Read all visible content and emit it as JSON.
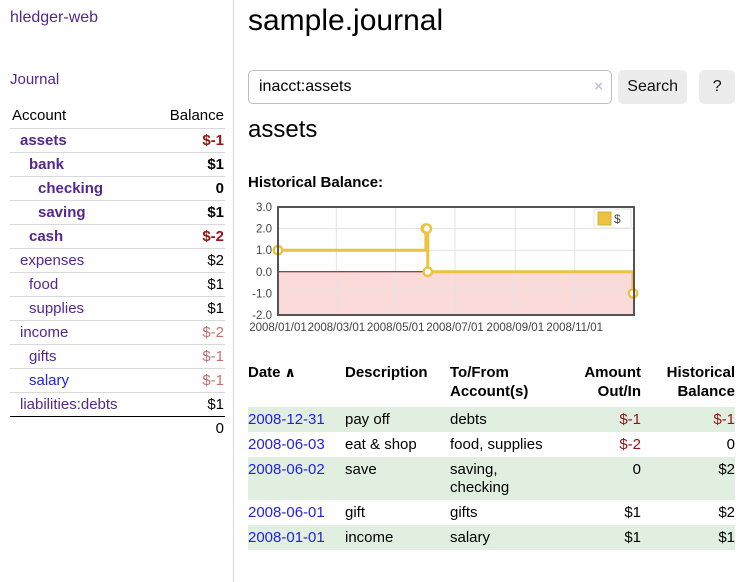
{
  "app": {
    "brand": "hledger-web",
    "nav": {
      "journal": "Journal"
    }
  },
  "colors": {
    "link-purple": "#54278f",
    "link-blue": "#2222dd",
    "negative-red": "#941414",
    "dim-negative": "#c56f6f",
    "row-green": "#e1efe1",
    "series-gold": "#edc240"
  },
  "sidebar": {
    "header": {
      "account": "Account",
      "balance": "Balance"
    },
    "accounts": [
      {
        "name": "assets",
        "indent": 0,
        "balance": "$-1",
        "in_account": true,
        "balance_color": "negative"
      },
      {
        "name": "bank",
        "indent": 1,
        "balance": "$1",
        "in_account": true,
        "balance_color": "normal"
      },
      {
        "name": "checking",
        "indent": 2,
        "balance": "0",
        "in_account": true,
        "balance_color": "normal"
      },
      {
        "name": "saving",
        "indent": 2,
        "balance": "$1",
        "in_account": true,
        "balance_color": "normal"
      },
      {
        "name": "cash",
        "indent": 1,
        "balance": "$-2",
        "in_account": true,
        "balance_color": "negative"
      },
      {
        "name": "expenses",
        "indent": 0,
        "balance": "$2",
        "in_account": false,
        "balance_color": "normal"
      },
      {
        "name": "food",
        "indent": 1,
        "balance": "$1",
        "in_account": false,
        "balance_color": "normal"
      },
      {
        "name": "supplies",
        "indent": 1,
        "balance": "$1",
        "in_account": false,
        "balance_color": "normal"
      },
      {
        "name": "income",
        "indent": 0,
        "balance": "$-2",
        "in_account": false,
        "balance_color": "dim-negative"
      },
      {
        "name": "gifts",
        "indent": 1,
        "balance": "$-1",
        "in_account": false,
        "balance_color": "dim-negative"
      },
      {
        "name": "salary",
        "indent": 1,
        "balance": "$-1",
        "in_account": false,
        "balance_color": "dim-negative",
        "link_color": "blue"
      },
      {
        "name": "liabilities:debts",
        "indent": 0,
        "balance": "$1",
        "in_account": false,
        "balance_color": "normal"
      }
    ],
    "total": "0"
  },
  "main": {
    "title": "sample.journal",
    "search": {
      "value": "inacct:assets",
      "clear_label": "×",
      "button_label": "Search",
      "help_label": "?"
    },
    "account_heading": "assets",
    "chart_title": "Historical Balance:"
  },
  "chart_data": {
    "type": "line",
    "step": true,
    "title": "Historical Balance",
    "series": [
      {
        "name": "$",
        "color": "#edc240",
        "points": [
          [
            "2008-01-01",
            1
          ],
          [
            "2008-06-01",
            2
          ],
          [
            "2008-06-02",
            2
          ],
          [
            "2008-06-03",
            0
          ],
          [
            "2008-12-31",
            -1
          ]
        ]
      }
    ],
    "xlim": [
      "2008-01-01",
      "2009-01-01"
    ],
    "ylim": [
      -2,
      3
    ],
    "yticks": [
      {
        "value": 3,
        "label": "3.0"
      },
      {
        "value": 2,
        "label": "2.0"
      },
      {
        "value": 1,
        "label": "1.0"
      },
      {
        "value": 0,
        "label": "0.0"
      },
      {
        "value": -1,
        "label": "-1.0"
      },
      {
        "value": -2,
        "label": "-2.0"
      }
    ],
    "xticks": [
      {
        "value": "2008-01-01",
        "label": "2008/01/01"
      },
      {
        "value": "2008-03-01",
        "label": "2008/03/01"
      },
      {
        "value": "2008-05-01",
        "label": "2008/05/01"
      },
      {
        "value": "2008-07-01",
        "label": "2008/07/01"
      },
      {
        "value": "2008-09-01",
        "label": "2008/09/01"
      },
      {
        "value": "2008-11-01",
        "label": "2008/11/01"
      }
    ],
    "legend": {
      "label": "$",
      "position": "top-right"
    },
    "grid": true,
    "negative_region_color": "#fbdada",
    "zero_line_color": "#8b0000",
    "plot_border_color": "#545454",
    "grid_color": "#e3e3e3",
    "tick_text_color": "#444444"
  },
  "register": {
    "headers": {
      "date": "Date",
      "sort_icon": "∧",
      "description": "Description",
      "accounts": "To/From Account(s)",
      "amount": "Amount Out/In",
      "balance": "Historical Balance"
    },
    "rows": [
      {
        "date": "2008-12-31",
        "description": "pay off",
        "accounts": "debts",
        "amount": "$-1",
        "amount_negative": true,
        "balance": "$-1",
        "balance_negative": true,
        "shaded": true
      },
      {
        "date": "2008-06-03",
        "description": "eat & shop",
        "accounts": "food, supplies",
        "amount": "$-2",
        "amount_negative": true,
        "balance": "0",
        "balance_negative": false,
        "shaded": false
      },
      {
        "date": "2008-06-02",
        "description": "save",
        "accounts": "saving, checking",
        "amount": "0",
        "amount_negative": false,
        "balance": "$2",
        "balance_negative": false,
        "shaded": true
      },
      {
        "date": "2008-06-01",
        "description": "gift",
        "accounts": "gifts",
        "amount": "$1",
        "amount_negative": false,
        "balance": "$2",
        "balance_negative": false,
        "shaded": false
      },
      {
        "date": "2008-01-01",
        "description": "income",
        "accounts": "salary",
        "amount": "$1",
        "amount_negative": false,
        "balance": "$1",
        "balance_negative": false,
        "shaded": true
      }
    ]
  }
}
